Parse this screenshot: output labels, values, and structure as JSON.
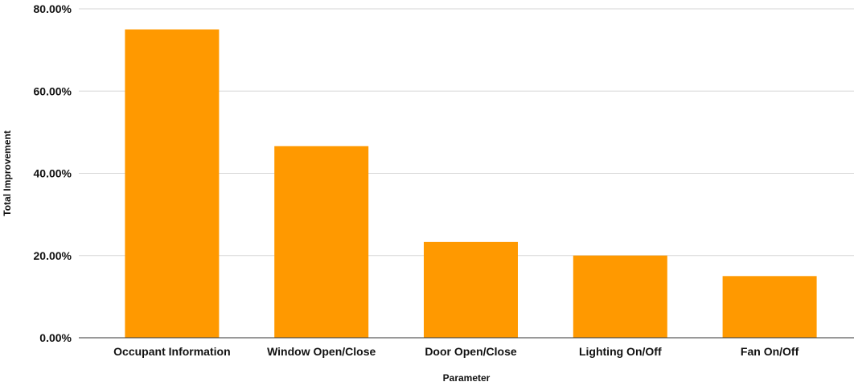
{
  "chart_data": {
    "type": "bar",
    "title": "",
    "xlabel": "Parameter",
    "ylabel": "Total Improvement",
    "categories": [
      "Occupant Information",
      "Window Open/Close",
      "Door Open/Close",
      "Lighting On/Off",
      "Fan On/Off"
    ],
    "values": [
      75.0,
      46.6,
      23.3,
      20.0,
      15.0
    ],
    "ylim": [
      0,
      80
    ],
    "yticks": [
      0,
      20,
      40,
      60,
      80
    ],
    "ytick_labels": [
      "0.00%",
      "20.00%",
      "40.00%",
      "60.00%",
      "80.00%"
    ],
    "bar_color": "#ff9900",
    "grid": true,
    "legend": "none"
  }
}
